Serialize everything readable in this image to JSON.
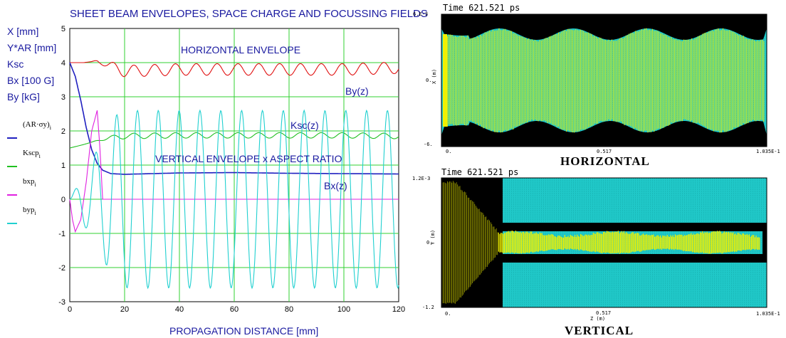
{
  "chart_data": [
    {
      "type": "line",
      "title": "SHEET BEAM ENVELOPES,  SPACE CHARGE AND FOCUSSING FIELDS",
      "xlabel": "PROPAGATION DISTANCE [mm]",
      "ylabel_lines": [
        "X [mm]",
        "Y*AR [mm]",
        "Ksc",
        "Bx [100 G]",
        "By [kG]"
      ],
      "xlim": [
        0,
        120
      ],
      "ylim": [
        -3,
        5
      ],
      "x_ticks": [
        "0",
        "20",
        "40",
        "60",
        "80",
        "100",
        "120"
      ],
      "y_ticks": [
        "5",
        "4",
        "3",
        "2",
        "1",
        "0",
        "-1",
        "-2",
        "-3"
      ],
      "grid": true,
      "legend_position": "left",
      "legend": [
        {
          "label": "(AR·σy)",
          "sub": "i",
          "color": "#2020c0"
        },
        {
          "label": "Kscp",
          "sub": "i",
          "color": "#20c020"
        },
        {
          "label": "bxp",
          "sub": "i",
          "color": "#e020e0"
        },
        {
          "label": "byp",
          "sub": "i",
          "color": "#20d0d0"
        }
      ],
      "annotations": {
        "horizontal": "HORIZONTAL ENVELOPE",
        "vertical": "VERTICAL ENVELOPE x ASPECT RATIO",
        "by": "By(z)",
        "ksc": "Ksc(z)",
        "bx": "Bx(z)"
      },
      "series": [
        {
          "key": "horizontal",
          "color": "#e01010",
          "x": [
            0,
            5,
            10,
            20,
            40,
            60,
            80,
            100,
            120
          ],
          "y": [
            4.0,
            4.0,
            4.05,
            3.75,
            3.8,
            3.8,
            3.8,
            3.8,
            3.85
          ],
          "ripple_amplitude": 0.17,
          "ripple_period": 7.6
        },
        {
          "key": "vertical",
          "color": "#2020c0",
          "x": [
            0,
            2,
            4,
            6,
            8,
            10,
            12,
            15,
            20,
            40,
            60,
            80,
            100,
            120
          ],
          "y": [
            4.0,
            3.6,
            2.9,
            2.1,
            1.45,
            1.05,
            0.85,
            0.75,
            0.73,
            0.77,
            0.78,
            0.76,
            0.75,
            0.74
          ]
        },
        {
          "key": "ksc",
          "color": "#20c020",
          "x": [
            0,
            5,
            10,
            15,
            20,
            40,
            60,
            80,
            100,
            120
          ],
          "y": [
            1.5,
            1.6,
            1.72,
            1.8,
            1.85,
            1.87,
            1.87,
            1.87,
            1.87,
            1.85
          ],
          "ripple_amplitude": 0.08,
          "ripple_period": 7.6
        },
        {
          "key": "bx",
          "color": "#e020e0",
          "x": [
            0,
            1,
            2,
            4,
            6,
            8,
            10,
            11,
            12,
            20,
            120
          ],
          "y": [
            0.0,
            -0.6,
            -0.95,
            -0.6,
            0.5,
            2.0,
            2.6,
            1.5,
            0.0,
            0.0,
            0.0
          ]
        },
        {
          "key": "by",
          "color": "#20d0d0",
          "x_range": [
            0,
            120
          ],
          "amplitude": 2.6,
          "period": 7.6,
          "onset_start": 0,
          "onset_end": 18
        }
      ]
    },
    {
      "type": "scatter",
      "title": "Time  621.521  ps",
      "xlabel": "",
      "ylabel": "X (m)",
      "caption": "HORIZONTAL",
      "x_ticks": [
        "0.",
        "0.517",
        "1.035E-1"
      ],
      "y_ticks": [
        "6.E-3",
        "0.",
        "-6."
      ],
      "colors": {
        "background": "#20c8c8",
        "particles": "#f0f000",
        "structure": "#000000"
      }
    },
    {
      "type": "scatter",
      "title": "Time  621.521  ps",
      "xlabel": "Z (m)",
      "ylabel": "Y (m)",
      "caption": "VERTICAL",
      "x_ticks": [
        "0.",
        "0.517",
        "1.035E-1"
      ],
      "y_ticks": [
        "1.2E-3",
        "0.",
        "-1.2"
      ],
      "colors": {
        "background": "#20c8c8",
        "particles": "#f0f000",
        "structure": "#000000"
      }
    }
  ]
}
